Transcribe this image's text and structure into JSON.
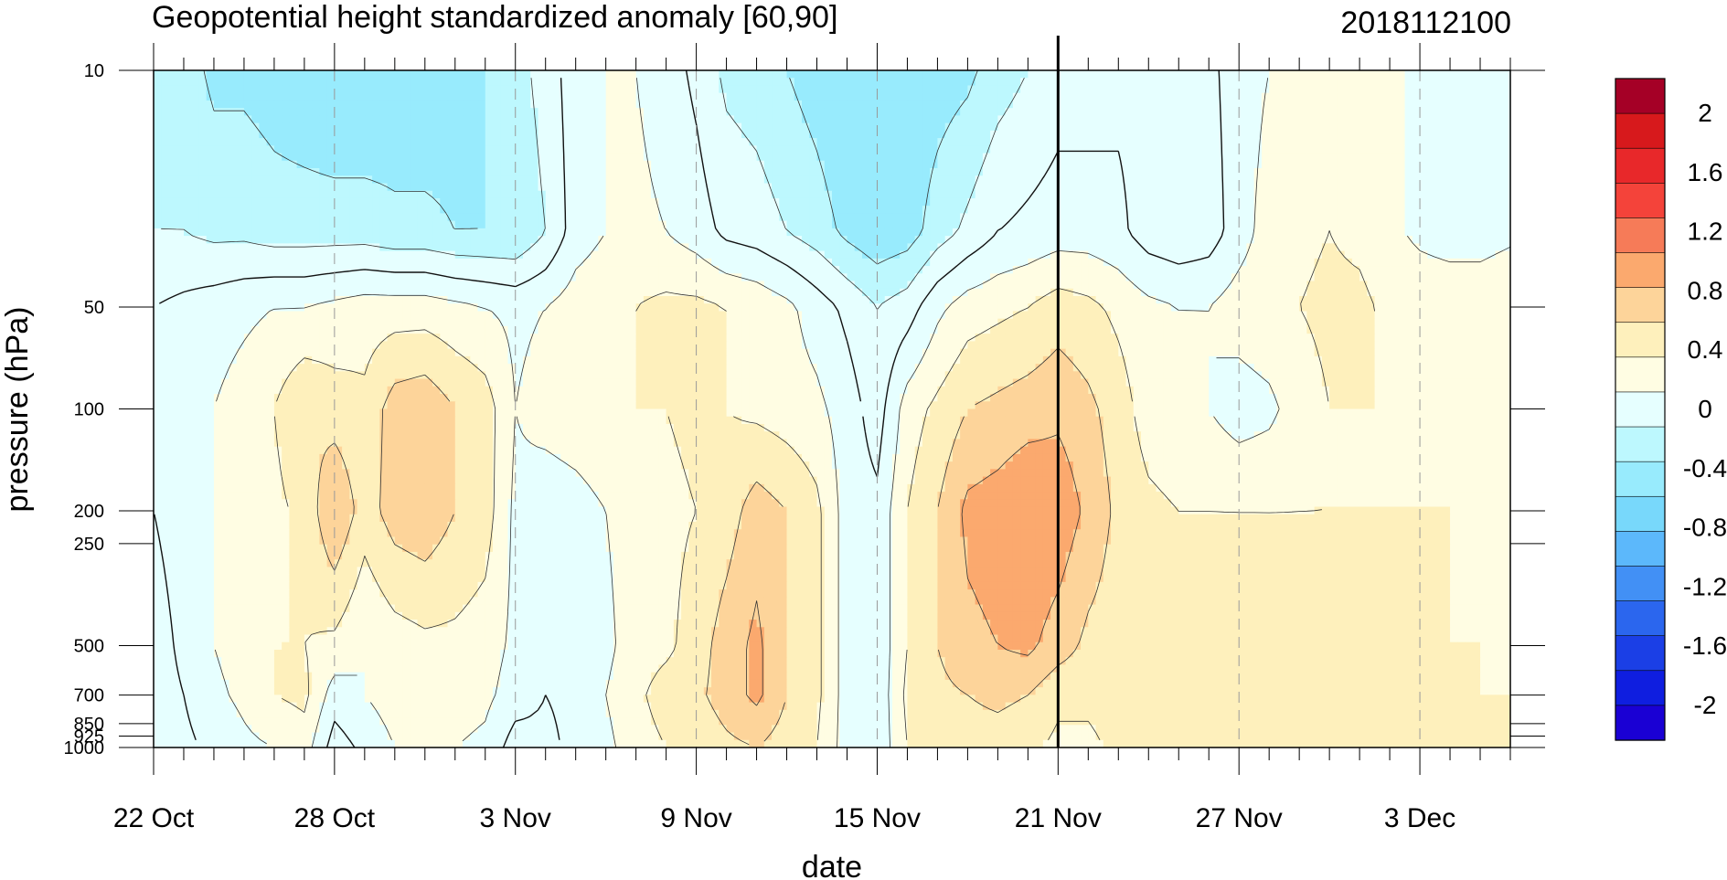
{
  "chart_data": {
    "type": "heatmap",
    "title": "Geopotential height standardized anomaly [60,90]",
    "date_stamp": "2018112100",
    "xlabel": "date",
    "ylabel": "pressure (hPa)",
    "x_tick_labels": [
      "22 Oct",
      "28 Oct",
      "3 Nov",
      "9 Nov",
      "15 Nov",
      "21 Nov",
      "27 Nov",
      "3 Dec"
    ],
    "x_tick_days": [
      0,
      6,
      12,
      18,
      24,
      30,
      36,
      42
    ],
    "x_range_days": [
      0,
      45
    ],
    "current_date_day": 30,
    "y_scale": "log",
    "y_ticks": [
      10,
      50,
      100,
      200,
      250,
      500,
      700,
      850,
      925,
      1000
    ],
    "y_tick_labels": [
      "10",
      "50",
      "100",
      "200",
      "250",
      "500",
      "700",
      "850",
      "925",
      "1000"
    ],
    "ylim": [
      1000,
      10
    ],
    "colorbar": {
      "labels": [
        "2",
        "1.6",
        "1.2",
        "0.8",
        "0.4",
        "0",
        "-0.4",
        "-0.8",
        "-1.2",
        "-1.6",
        "-2"
      ],
      "colors": [
        "#a50026",
        "#d7191c",
        "#e8282a",
        "#f4433a",
        "#f67b58",
        "#fba96e",
        "#fdd49a",
        "#fef0bc",
        "#fffde3",
        "#e6ffff",
        "#bdf8fe",
        "#98ebfd",
        "#78d8fb",
        "#5cb8fb",
        "#4290f5",
        "#2b66ee",
        "#1b3fe6",
        "#0f1ee0",
        "#1a00d4"
      ]
    },
    "x_days": [
      0,
      1,
      2,
      3,
      4,
      5,
      6,
      7,
      8,
      9,
      10,
      11,
      12,
      13,
      14,
      15,
      16,
      17,
      18,
      19,
      20,
      21,
      22,
      23,
      24,
      25,
      26,
      27,
      28,
      29,
      30,
      31,
      32,
      33,
      34,
      35,
      36,
      37,
      38,
      39,
      40,
      41,
      42,
      43,
      44,
      45
    ],
    "levels": [
      10,
      30,
      50,
      100,
      200,
      500,
      700,
      1000
    ],
    "values": [
      [
        -0.2,
        -0.3,
        -0.45,
        -0.45,
        -0.5,
        -0.55,
        -0.6,
        -0.6,
        -0.55,
        -0.55,
        -0.5,
        -0.4,
        -0.3,
        -0.1,
        0.1,
        0.2,
        0.2,
        0.1,
        -0.05,
        -0.25,
        -0.3,
        -0.4,
        -0.5,
        -0.6,
        -0.6,
        -0.55,
        -0.5,
        -0.45,
        -0.3,
        -0.2,
        -0.1,
        -0.1,
        -0.05,
        -0.05,
        -0.05,
        -0.05,
        0.1,
        0.2,
        0.3,
        0.35,
        0.35,
        0.2,
        0.2,
        0.2,
        0.15,
        0.15
      ],
      [
        -0.2,
        -0.2,
        -0.25,
        -0.25,
        -0.3,
        -0.3,
        -0.3,
        -0.3,
        -0.35,
        -0.35,
        -0.4,
        -0.4,
        -0.4,
        -0.2,
        0.1,
        0.2,
        0.25,
        0.2,
        0.1,
        -0.05,
        -0.1,
        -0.2,
        -0.3,
        -0.45,
        -0.55,
        -0.5,
        -0.3,
        -0.15,
        0.0,
        0.05,
        0.1,
        0.1,
        0.05,
        -0.1,
        -0.15,
        -0.1,
        0.1,
        0.3,
        0.35,
        0.4,
        0.35,
        0.25,
        0.15,
        0.1,
        0.1,
        0.15
      ],
      [
        0.0,
        0.05,
        0.1,
        0.15,
        0.2,
        0.2,
        0.25,
        0.3,
        0.3,
        0.3,
        0.25,
        0.2,
        0.15,
        0.2,
        0.3,
        0.35,
        0.4,
        0.45,
        0.45,
        0.4,
        0.35,
        0.25,
        0.1,
        -0.05,
        -0.2,
        -0.1,
        0.15,
        0.3,
        0.35,
        0.4,
        0.5,
        0.45,
        0.35,
        0.25,
        0.2,
        0.2,
        0.3,
        0.35,
        0.4,
        0.45,
        0.45,
        0.35,
        0.35,
        0.35,
        0.35,
        0.4
      ],
      [
        0.0,
        0.1,
        0.2,
        0.3,
        0.4,
        0.6,
        0.5,
        0.45,
        0.7,
        0.75,
        0.6,
        0.5,
        0.2,
        0.3,
        0.35,
        0.4,
        0.4,
        0.4,
        0.45,
        0.4,
        0.35,
        0.3,
        0.25,
        0.1,
        -0.1,
        0.3,
        0.45,
        0.6,
        0.65,
        0.7,
        0.75,
        0.65,
        0.5,
        0.3,
        0.25,
        0.2,
        0.1,
        0.15,
        0.3,
        0.4,
        0.4,
        0.4,
        0.4,
        0.4,
        0.4,
        0.4
      ],
      [
        0.0,
        0.1,
        0.2,
        0.3,
        0.35,
        0.45,
        0.8,
        0.5,
        0.7,
        0.75,
        0.6,
        0.5,
        0.15,
        0.05,
        0.1,
        0.2,
        0.3,
        0.35,
        0.4,
        0.5,
        0.7,
        0.6,
        0.45,
        0.1,
        0.05,
        0.4,
        0.6,
        0.85,
        0.9,
        1.0,
        0.95,
        0.75,
        0.55,
        0.45,
        0.4,
        0.4,
        0.4,
        0.4,
        0.4,
        0.4,
        0.4,
        0.4,
        0.4,
        0.4,
        0.4,
        0.4
      ],
      [
        -0.1,
        0.05,
        0.2,
        0.3,
        0.4,
        0.4,
        0.35,
        0.2,
        0.3,
        0.35,
        0.35,
        0.3,
        0.15,
        0.05,
        0.1,
        0.15,
        0.3,
        0.35,
        0.5,
        0.7,
        0.85,
        0.6,
        0.45,
        0.1,
        0.05,
        0.4,
        0.6,
        0.75,
        0.8,
        0.85,
        0.7,
        0.55,
        0.5,
        0.5,
        0.55,
        0.6,
        0.55,
        0.5,
        0.5,
        0.45,
        0.45,
        0.45,
        0.45,
        0.4,
        0.4,
        0.4
      ],
      [
        -0.1,
        0.0,
        0.15,
        0.25,
        0.4,
        0.45,
        0.1,
        0.2,
        0.3,
        0.35,
        0.3,
        0.25,
        0.1,
        0.0,
        0.05,
        0.2,
        0.35,
        0.5,
        0.55,
        0.7,
        0.85,
        0.6,
        0.45,
        0.1,
        0.05,
        0.45,
        0.55,
        0.6,
        0.65,
        0.6,
        0.45,
        0.45,
        0.5,
        0.5,
        0.55,
        0.55,
        0.5,
        0.5,
        0.5,
        0.5,
        0.45,
        0.45,
        0.45,
        0.45,
        0.4,
        0.4
      ],
      [
        -0.15,
        -0.05,
        0.05,
        0.15,
        0.2,
        0.3,
        -0.1,
        0.05,
        0.2,
        0.25,
        0.2,
        0.15,
        -0.1,
        -0.05,
        0.05,
        0.15,
        0.3,
        0.4,
        0.45,
        0.55,
        0.6,
        0.5,
        0.4,
        0.1,
        0.05,
        0.4,
        0.45,
        0.5,
        0.5,
        0.45,
        0.35,
        0.35,
        0.45,
        0.5,
        0.55,
        0.5,
        0.5,
        0.5,
        0.45,
        0.45,
        0.45,
        0.45,
        0.45,
        0.45,
        0.45,
        0.4
      ]
    ]
  }
}
